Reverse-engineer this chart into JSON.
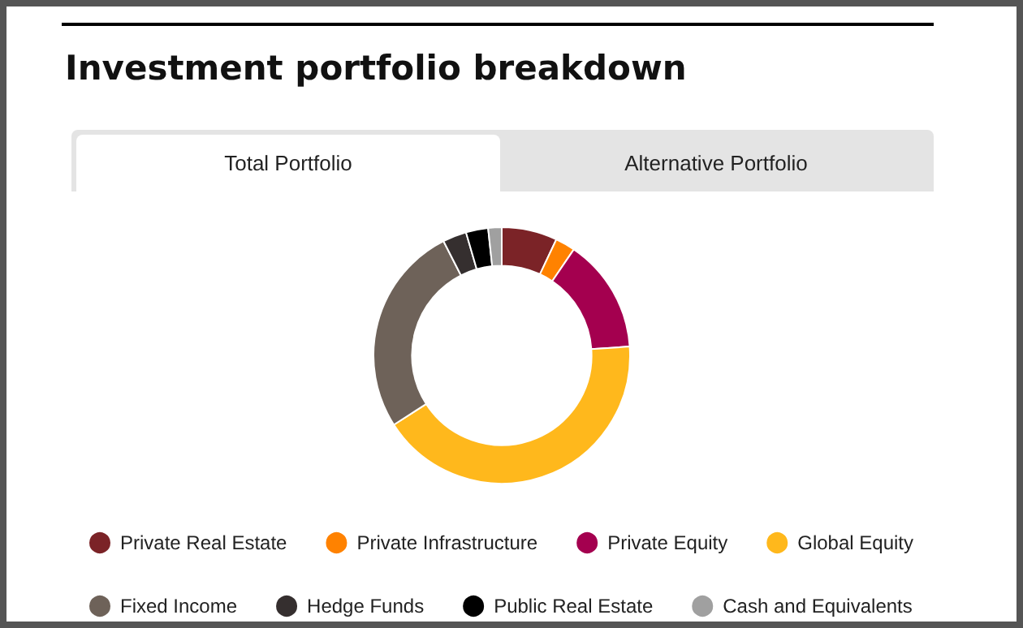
{
  "chart_data": {
    "type": "donut",
    "title": "Investment portfolio breakdown",
    "annotations": [
      "Total Portfolio",
      "Alternative Portfolio"
    ],
    "categories": [
      "Private Real Estate",
      "Private Infrastructure",
      "Private Equity",
      "Global Equity",
      "Fixed Income",
      "Hedge Funds",
      "Public Real Estate",
      "Cash and Equivalents"
    ],
    "values": [
      7,
      2.5,
      14.4,
      42,
      26.6,
      3,
      2.8,
      1.7
    ],
    "colors": [
      "#7b2327",
      "#ff8200",
      "#a4004f",
      "#ffb81c",
      "#6e6259",
      "#352f2f",
      "#000000",
      "#a0a0a0"
    ],
    "legend": "bottom"
  }
}
